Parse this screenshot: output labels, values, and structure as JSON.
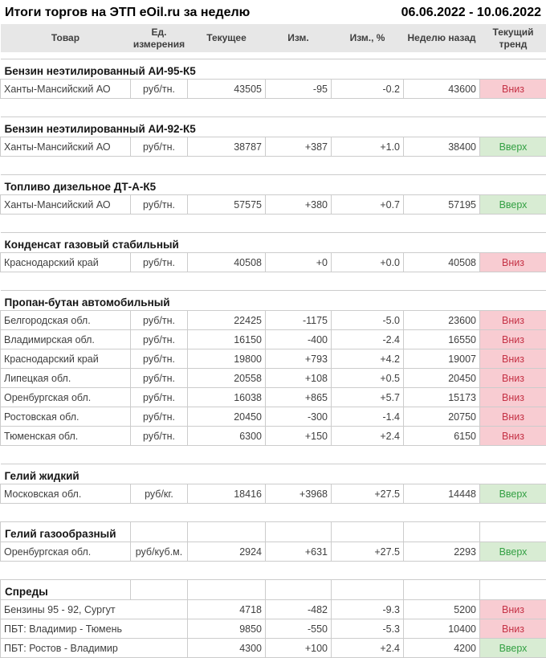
{
  "title": "Итоги торгов на ЭТП eOil.ru за неделю",
  "date_range": "06.06.2022 - 10.06.2022",
  "columns": [
    "Товар",
    "Ед. измерения",
    "Текущее",
    "Изм.",
    "Изм., %",
    "Неделю назад",
    "Текущий тренд"
  ],
  "colors": {
    "positive": "#0aa30a",
    "negative": "#e03232",
    "body_text": "#3f3f3f",
    "grid_line": "#cccccc",
    "header_bg": "#e7e7e7",
    "trend_up_bg": "#d8ecd3",
    "trend_up_text": "#33a043",
    "trend_down_bg": "#f8ccd2",
    "trend_down_text": "#c53246"
  },
  "sections": [
    {
      "name": "Бензин неэтилированный АИ-95-К5",
      "grid_header": false,
      "rows": [
        {
          "product": "Ханты-Мансийский АО",
          "unit": "руб/тн.",
          "current": "43505",
          "change": "-95",
          "change_pct": "-0.2",
          "week_ago": "43600",
          "change_color": "down",
          "trend": "Вниз",
          "trend_dir": "down"
        }
      ]
    },
    {
      "name": "Бензин неэтилированный АИ-92-К5",
      "grid_header": false,
      "rows": [
        {
          "product": "Ханты-Мансийский АО",
          "unit": "руб/тн.",
          "current": "38787",
          "change": "+387",
          "change_pct": "+1.0",
          "week_ago": "38400",
          "change_color": "up",
          "trend": "Вверх",
          "trend_dir": "up"
        }
      ]
    },
    {
      "name": "Топливо дизельное ДТ-А-К5",
      "grid_header": false,
      "rows": [
        {
          "product": "Ханты-Мансийский АО",
          "unit": "руб/тн.",
          "current": "57575",
          "change": "+380",
          "change_pct": "+0.7",
          "week_ago": "57195",
          "change_color": "up",
          "trend": "Вверх",
          "trend_dir": "up"
        }
      ]
    },
    {
      "name": "Конденсат газовый стабильный",
      "grid_header": false,
      "rows": [
        {
          "product": "Краснодарский край",
          "unit": "руб/тн.",
          "current": "40508",
          "change": "+0",
          "change_pct": "+0.0",
          "week_ago": "40508",
          "change_color": "neutral",
          "trend": "Вниз",
          "trend_dir": "down"
        }
      ]
    },
    {
      "name": "Пропан-бутан автомобильный",
      "grid_header": false,
      "rows": [
        {
          "product": "Белгородская обл.",
          "unit": "руб/тн.",
          "current": "22425",
          "change": "-1175",
          "change_pct": "-5.0",
          "week_ago": "23600",
          "change_color": "down",
          "trend": "Вниз",
          "trend_dir": "down"
        },
        {
          "product": "Владимирская обл.",
          "unit": "руб/тн.",
          "current": "16150",
          "change": "-400",
          "change_pct": "-2.4",
          "week_ago": "16550",
          "change_color": "down",
          "trend": "Вниз",
          "trend_dir": "down"
        },
        {
          "product": "Краснодарский край",
          "unit": "руб/тн.",
          "current": "19800",
          "change": "+793",
          "change_pct": "+4.2",
          "week_ago": "19007",
          "change_color": "up",
          "trend": "Вниз",
          "trend_dir": "down"
        },
        {
          "product": "Липецкая обл.",
          "unit": "руб/тн.",
          "current": "20558",
          "change": "+108",
          "change_pct": "+0.5",
          "week_ago": "20450",
          "change_color": "up",
          "trend": "Вниз",
          "trend_dir": "down"
        },
        {
          "product": "Оренбургская обл.",
          "unit": "руб/тн.",
          "current": "16038",
          "change": "+865",
          "change_pct": "+5.7",
          "week_ago": "15173",
          "change_color": "up",
          "trend": "Вниз",
          "trend_dir": "down"
        },
        {
          "product": "Ростовская обл.",
          "unit": "руб/тн.",
          "current": "20450",
          "change": "-300",
          "change_pct": "-1.4",
          "week_ago": "20750",
          "change_color": "down",
          "trend": "Вниз",
          "trend_dir": "down"
        },
        {
          "product": "Тюменская обл.",
          "unit": "руб/тн.",
          "current": "6300",
          "change": "+150",
          "change_pct": "+2.4",
          "week_ago": "6150",
          "change_color": "up",
          "trend": "Вниз",
          "trend_dir": "down"
        }
      ]
    },
    {
      "name": "Гелий жидкий",
      "grid_header": false,
      "rows": [
        {
          "product": "Московская обл.",
          "unit": "руб/кг.",
          "current": "18416",
          "change": "+3968",
          "change_pct": "+27.5",
          "week_ago": "14448",
          "change_color": "up",
          "trend": "Вверх",
          "trend_dir": "up"
        }
      ]
    },
    {
      "name": "Гелий газообразный",
      "grid_header": true,
      "rows": [
        {
          "product": "Оренбургская обл.",
          "unit": "руб/куб.м.",
          "current": "2924",
          "change": "+631",
          "change_pct": "+27.5",
          "week_ago": "2293",
          "change_color": "up",
          "trend": "Вверх",
          "trend_dir": "up"
        }
      ]
    },
    {
      "name": "Спреды",
      "grid_header": true,
      "rows": [
        {
          "product": "Бензины 95 - 92, Сургут",
          "unit": "",
          "merged": true,
          "current": "4718",
          "change": "-482",
          "change_pct": "-9.3",
          "week_ago": "5200",
          "change_color": "down",
          "trend": "Вниз",
          "trend_dir": "down"
        },
        {
          "product": "ПБТ: Владимир - Тюмень",
          "unit": "",
          "merged": true,
          "current": "9850",
          "change": "-550",
          "change_pct": "-5.3",
          "week_ago": "10400",
          "change_color": "down",
          "trend": "Вниз",
          "trend_dir": "down"
        },
        {
          "product": "ПБТ: Ростов - Владимир",
          "unit": "",
          "merged": true,
          "current": "4300",
          "change": "+100",
          "change_pct": "+2.4",
          "week_ago": "4200",
          "change_color": "up",
          "trend": "Вверх",
          "trend_dir": "up"
        }
      ]
    }
  ]
}
